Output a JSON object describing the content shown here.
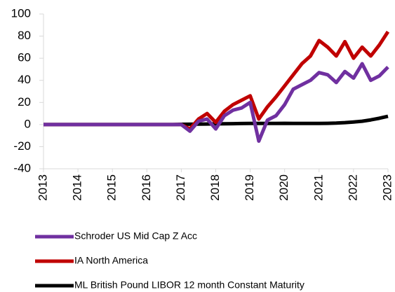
{
  "chart_data": {
    "type": "line",
    "x": [
      2013,
      2013.25,
      2013.5,
      2013.75,
      2014,
      2014.25,
      2014.5,
      2014.75,
      2015,
      2015.25,
      2015.5,
      2015.75,
      2016,
      2016.25,
      2016.5,
      2016.75,
      2017,
      2017.25,
      2017.5,
      2017.75,
      2018,
      2018.25,
      2018.5,
      2018.75,
      2019,
      2019.25,
      2019.5,
      2019.75,
      2020,
      2020.25,
      2020.5,
      2020.75,
      2021,
      2021.25,
      2021.5,
      2021.75,
      2022,
      2022.25,
      2022.5,
      2022.75,
      2023
    ],
    "series": [
      {
        "name": "Schroder US Mid Cap Z Acc",
        "color": "#7030a0",
        "values": [
          0,
          0,
          0,
          0,
          0,
          0,
          0,
          0,
          0,
          0,
          0,
          0,
          0,
          0,
          0,
          0,
          0,
          -6,
          3,
          5,
          -4,
          8,
          13,
          15,
          20,
          -15,
          4,
          8,
          18,
          32,
          36,
          40,
          47,
          45,
          38,
          48,
          42,
          55,
          40,
          44,
          52
        ]
      },
      {
        "name": "IA North America",
        "color": "#c00000",
        "values": [
          0,
          0,
          0,
          0,
          0,
          0,
          0,
          0,
          0,
          0,
          0,
          0,
          0,
          0,
          0,
          0,
          0,
          -4,
          5,
          10,
          2,
          12,
          18,
          22,
          26,
          5,
          16,
          25,
          35,
          45,
          55,
          62,
          76,
          70,
          62,
          75,
          60,
          70,
          62,
          72,
          84
        ]
      },
      {
        "name": "ML British Pound LIBOR 12 month Constant Maturity",
        "color": "#000000",
        "values": [
          0,
          0,
          0,
          0,
          0,
          0,
          0,
          0,
          0,
          0,
          0,
          0,
          0,
          0,
          0,
          0,
          0.2,
          0.3,
          0.4,
          0.5,
          0.6,
          0.7,
          0.8,
          0.9,
          1,
          1,
          1,
          1,
          1.1,
          1,
          1,
          1,
          1,
          1.1,
          1.3,
          1.7,
          2.3,
          3,
          4.2,
          5.7,
          7.5
        ]
      }
    ],
    "xlim": [
      2013,
      2023
    ],
    "xticks": [
      2013,
      2014,
      2015,
      2016,
      2017,
      2018,
      2019,
      2020,
      2021,
      2022,
      2023
    ],
    "ylim": [
      -40,
      100
    ],
    "yticks": [
      -40,
      -20,
      0,
      20,
      40,
      60,
      80,
      100
    ]
  }
}
